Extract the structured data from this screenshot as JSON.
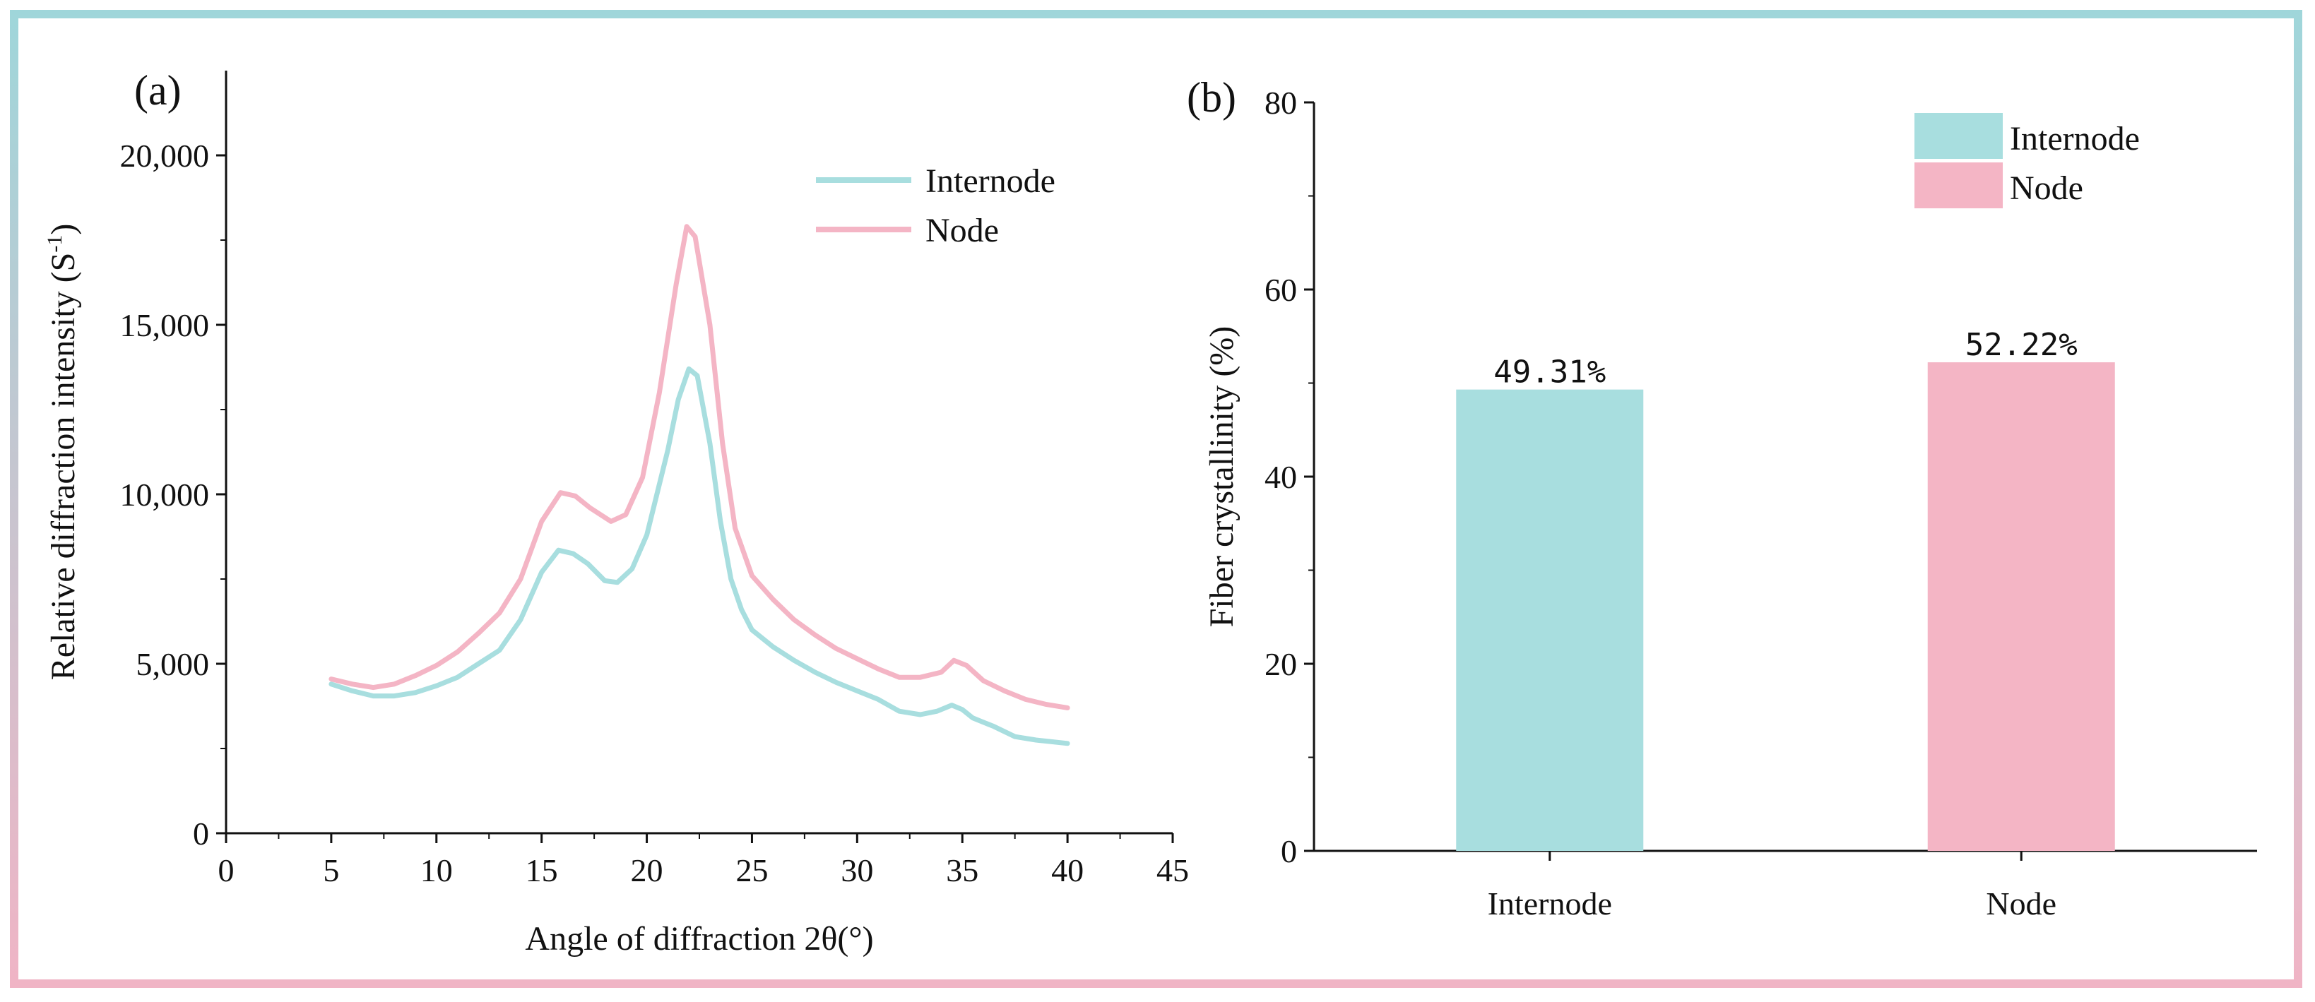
{
  "colors": {
    "internode": "#a8dedf",
    "node": "#f4b5c5",
    "axis": "#111111"
  },
  "chart_data": [
    {
      "panel_label": "(a)",
      "type": "line",
      "xlabel": "Angle of diffraction 2θ(°)",
      "ylabel": "Relative diffraction intensity (S",
      "ylabel_sup": "-1",
      "ylabel_close": ")",
      "xlim": [
        0,
        45
      ],
      "ylim": [
        0,
        22500
      ],
      "xticks": [
        0,
        5,
        10,
        15,
        20,
        25,
        30,
        35,
        40,
        45
      ],
      "xtick_labels": [
        "0",
        "5",
        "10",
        "15",
        "20",
        "25",
        "30",
        "35",
        "40",
        "45"
      ],
      "yticks": [
        0,
        5000,
        10000,
        15000,
        20000
      ],
      "ytick_labels": [
        "0",
        "5,000",
        "10,000",
        "15,000",
        "20,000"
      ],
      "series": [
        {
          "name": "Internode",
          "color_key": "internode",
          "points": [
            [
              5,
              4400
            ],
            [
              6,
              4200
            ],
            [
              7,
              4050
            ],
            [
              8,
              4050
            ],
            [
              9,
              4150
            ],
            [
              10,
              4350
            ],
            [
              11,
              4600
            ],
            [
              12,
              5000
            ],
            [
              13,
              5400
            ],
            [
              14,
              6300
            ],
            [
              15,
              7700
            ],
            [
              15.8,
              8350
            ],
            [
              16.5,
              8250
            ],
            [
              17.2,
              7950
            ],
            [
              18,
              7450
            ],
            [
              18.6,
              7400
            ],
            [
              19.3,
              7800
            ],
            [
              20,
              8800
            ],
            [
              21,
              11300
            ],
            [
              21.5,
              12800
            ],
            [
              22,
              13700
            ],
            [
              22.4,
              13500
            ],
            [
              23,
              11500
            ],
            [
              23.5,
              9200
            ],
            [
              24,
              7500
            ],
            [
              24.5,
              6600
            ],
            [
              25,
              6000
            ],
            [
              26,
              5500
            ],
            [
              27,
              5100
            ],
            [
              28,
              4750
            ],
            [
              29,
              4450
            ],
            [
              30,
              4200
            ],
            [
              31,
              3950
            ],
            [
              32,
              3600
            ],
            [
              33,
              3500
            ],
            [
              33.8,
              3600
            ],
            [
              34.5,
              3780
            ],
            [
              35,
              3650
            ],
            [
              35.5,
              3400
            ],
            [
              36.5,
              3150
            ],
            [
              37.5,
              2850
            ],
            [
              38.5,
              2750
            ],
            [
              40,
              2650
            ]
          ]
        },
        {
          "name": "Node",
          "color_key": "node",
          "points": [
            [
              5,
              4550
            ],
            [
              6,
              4400
            ],
            [
              7,
              4300
            ],
            [
              8,
              4400
            ],
            [
              9,
              4650
            ],
            [
              10,
              4950
            ],
            [
              11,
              5350
            ],
            [
              12,
              5900
            ],
            [
              13,
              6500
            ],
            [
              14,
              7500
            ],
            [
              15,
              9200
            ],
            [
              15.9,
              10050
            ],
            [
              16.6,
              9950
            ],
            [
              17.3,
              9600
            ],
            [
              18.3,
              9200
            ],
            [
              19,
              9400
            ],
            [
              19.8,
              10500
            ],
            [
              20.6,
              13000
            ],
            [
              21.4,
              16200
            ],
            [
              21.9,
              17900
            ],
            [
              22.3,
              17600
            ],
            [
              23,
              15000
            ],
            [
              23.6,
              11500
            ],
            [
              24.2,
              9000
            ],
            [
              25,
              7600
            ],
            [
              26,
              6900
            ],
            [
              27,
              6300
            ],
            [
              28,
              5850
            ],
            [
              29,
              5450
            ],
            [
              30,
              5150
            ],
            [
              31,
              4850
            ],
            [
              32,
              4600
            ],
            [
              33,
              4600
            ],
            [
              34,
              4750
            ],
            [
              34.6,
              5100
            ],
            [
              35.2,
              4950
            ],
            [
              36,
              4500
            ],
            [
              37,
              4200
            ],
            [
              38,
              3950
            ],
            [
              39,
              3800
            ],
            [
              40,
              3700
            ]
          ]
        }
      ],
      "legend": [
        {
          "label": "Internode",
          "color_key": "internode"
        },
        {
          "label": "Node",
          "color_key": "node"
        }
      ],
      "legend_position": "top-right"
    },
    {
      "panel_label": "(b)",
      "type": "bar",
      "categories": [
        "Internode",
        "Node"
      ],
      "values": [
        49.31,
        52.22
      ],
      "value_labels": [
        "49.31%",
        "52.22%"
      ],
      "color_keys": [
        "internode",
        "node"
      ],
      "ylabel": "Fiber crystallinity (%)",
      "xlabel": "",
      "ylim": [
        0,
        80
      ],
      "yticks": [
        0,
        20,
        40,
        60,
        80
      ],
      "ytick_labels": [
        "0",
        "20",
        "40",
        "60",
        "80"
      ],
      "legend": [
        {
          "label": "Internode",
          "color_key": "internode"
        },
        {
          "label": "Node",
          "color_key": "node"
        }
      ],
      "legend_position": "top-right"
    }
  ]
}
